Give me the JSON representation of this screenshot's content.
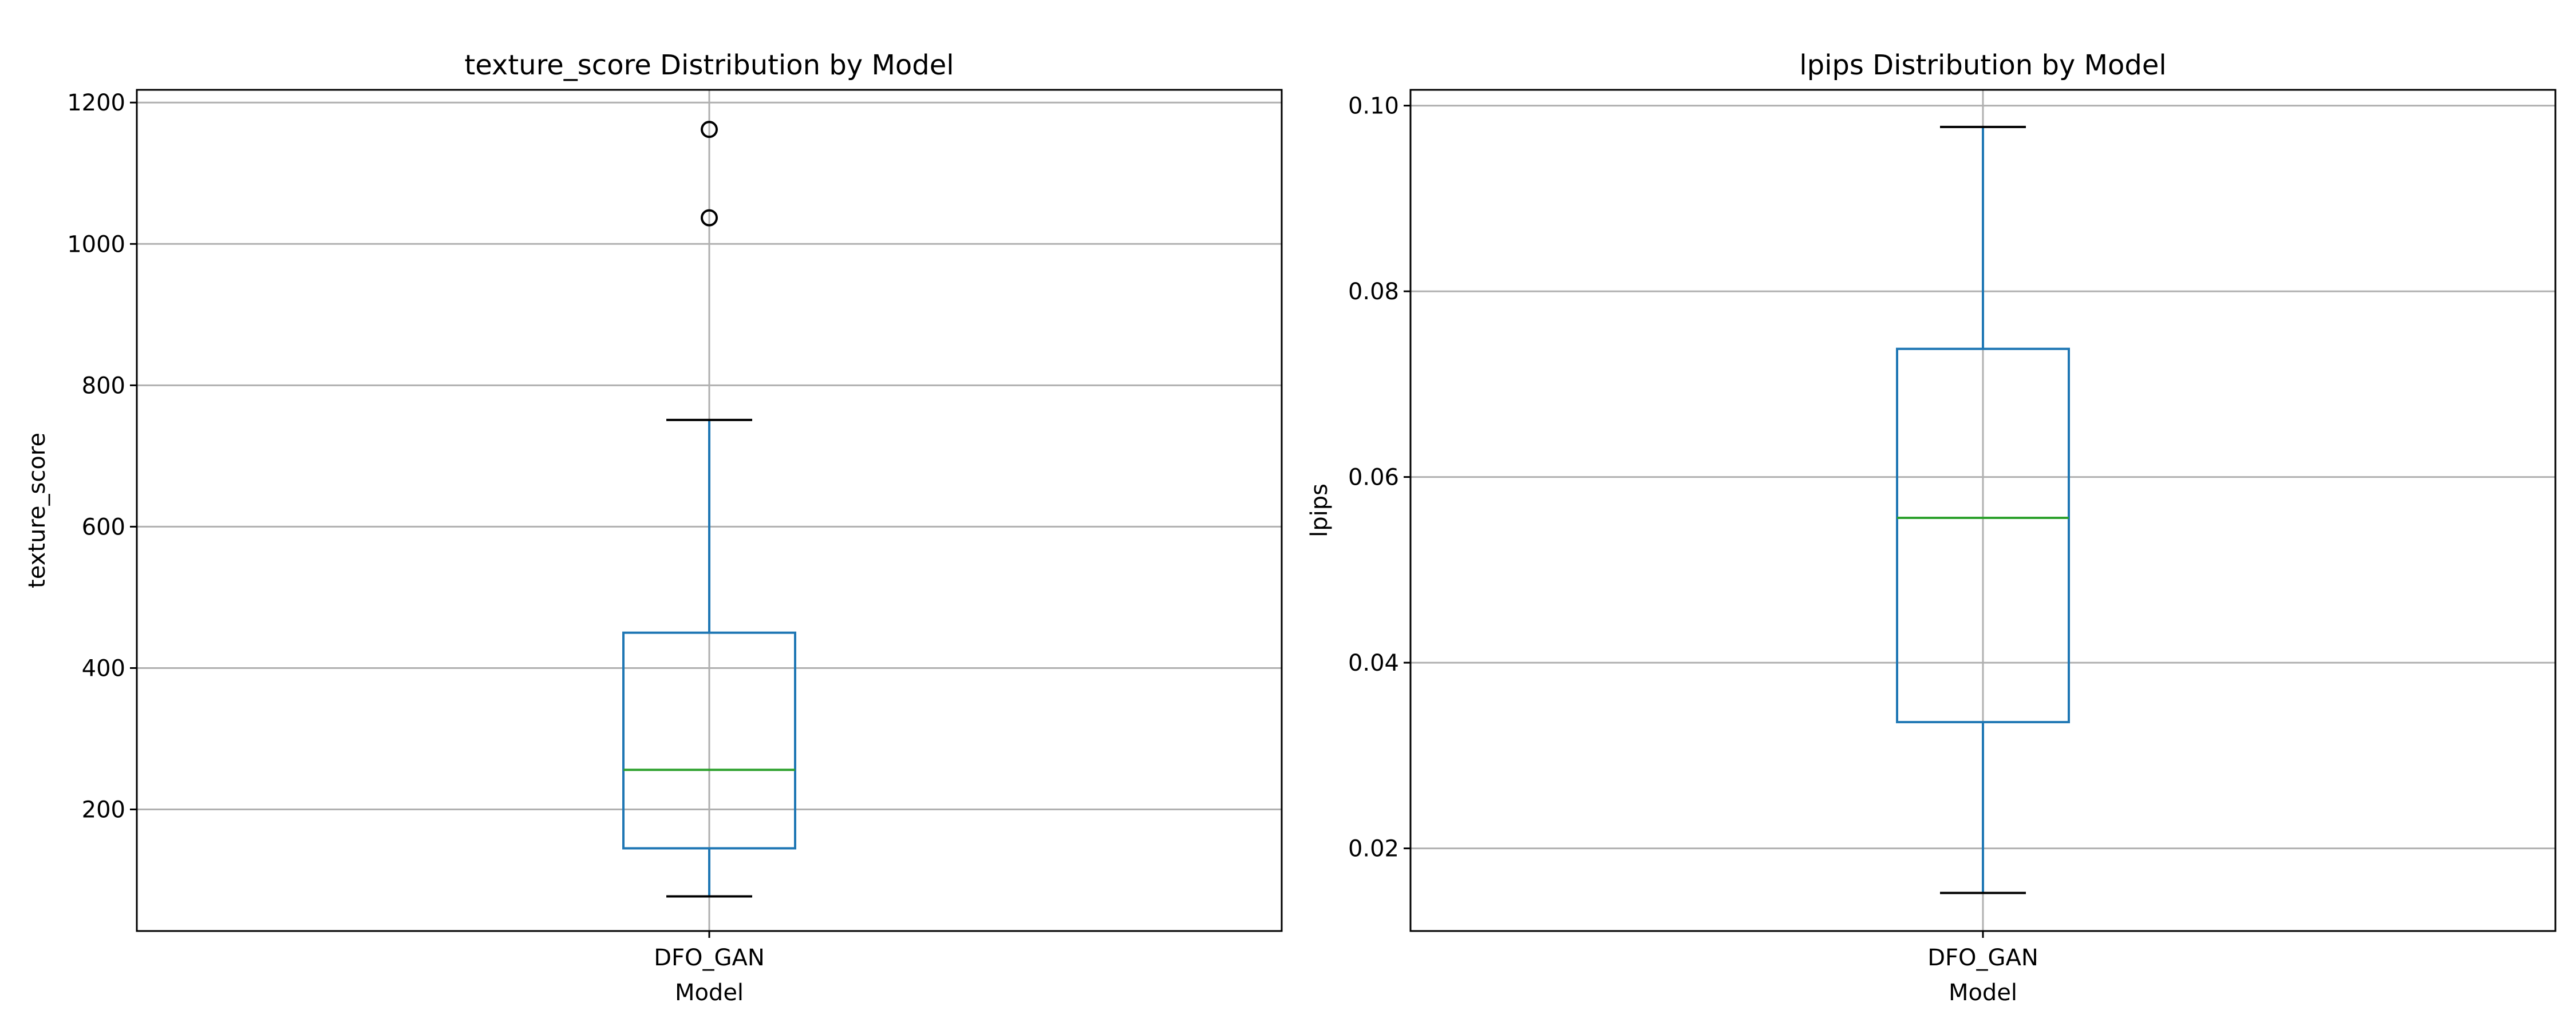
{
  "chart_data": [
    {
      "type": "box",
      "title": "texture_score Distribution by Model",
      "xlabel": "Model",
      "ylabel": "texture_score",
      "categories": [
        "DFO_GAN"
      ],
      "yticks": [
        200,
        400,
        600,
        800,
        1000,
        1200
      ],
      "ylim": [
        28,
        1218
      ],
      "grid": true,
      "boxes": [
        {
          "category": "DFO_GAN",
          "whisker_low": 77,
          "q1": 145,
          "median": 256,
          "q3": 450,
          "whisker_high": 751,
          "outliers": [
            1037,
            1162
          ]
        }
      ],
      "colors": {
        "box": "#1f77b4",
        "median": "#2ca02c",
        "cap": "#000000",
        "grid": "#b0b0b0"
      }
    },
    {
      "type": "box",
      "title": "lpips Distribution by Model",
      "xlabel": "Model",
      "ylabel": "lpips",
      "categories": [
        "DFO_GAN"
      ],
      "yticks": [
        0.02,
        0.04,
        0.06,
        0.08,
        0.1
      ],
      "ytick_labels": [
        "0.02",
        "0.04",
        "0.06",
        "0.08",
        "0.10"
      ],
      "ylim": [
        0.0111,
        0.1017
      ],
      "grid": true,
      "boxes": [
        {
          "category": "DFO_GAN",
          "whisker_low": 0.0152,
          "q1": 0.0336,
          "median": 0.0556,
          "q3": 0.0738,
          "whisker_high": 0.0977,
          "outliers": []
        }
      ],
      "colors": {
        "box": "#1f77b4",
        "median": "#2ca02c",
        "cap": "#000000",
        "grid": "#b0b0b0"
      }
    }
  ]
}
